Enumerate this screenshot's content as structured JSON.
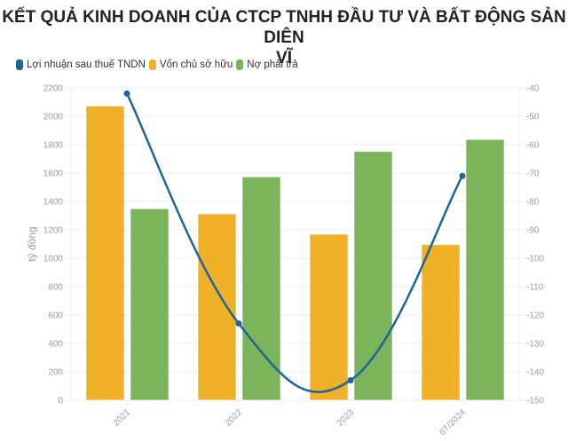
{
  "title": {
    "line1": "KẾT QUẢ KINH DOANH CỦA CTCP TNHH ĐẦU TƯ VÀ BẤT ĐỘNG SẢN DIÊN",
    "line2": "VĨ"
  },
  "legend": [
    {
      "label": "Lợi nhuận sau thuế TNDN",
      "color": "#1f6697"
    },
    {
      "label": "Vốn chủ sở hữu",
      "color": "#f0b128"
    },
    {
      "label": "Nợ phải trả",
      "color": "#7cb45c"
    }
  ],
  "axes": {
    "left_label": "tỷ đồng",
    "left_ticks": [
      "0",
      "200",
      "400",
      "600",
      "800",
      "1000",
      "1200",
      "1400",
      "1600",
      "1800",
      "2000",
      "2200"
    ],
    "right_ticks": [
      "-150",
      "-140",
      "-130",
      "-120",
      "-110",
      "-100",
      "-90",
      "-80",
      "-70",
      "-60",
      "-50",
      "-40"
    ],
    "x_ticks": [
      "2021",
      "2022",
      "2023",
      "6T/2024"
    ]
  },
  "chart_data": {
    "type": "bar",
    "title": "KẾT QUẢ KINH DOANH CỦA CTCP TNHH ĐẦU TƯ VÀ BẤT ĐỘNG SẢN DIÊN VĨ",
    "categories": [
      "2021",
      "2022",
      "2023",
      "6T/2024"
    ],
    "series": [
      {
        "name": "Lợi nhuận sau thuế TNDN",
        "type": "line",
        "axis": "right",
        "color": "#1f6697",
        "values": [
          -42,
          -123,
          -143,
          -71
        ]
      },
      {
        "name": "Vốn chủ sở hữu",
        "type": "bar",
        "axis": "left",
        "color": "#f0b128",
        "values": [
          2072,
          1312,
          1169,
          1096
        ]
      },
      {
        "name": "Nợ phải trả",
        "type": "bar",
        "axis": "left",
        "color": "#7cb45c",
        "values": [
          1348,
          1573,
          1752,
          1836
        ]
      }
    ],
    "xlabel": "",
    "ylabel": "tỷ đồng",
    "ylim": [
      0,
      2200
    ],
    "y2lim": [
      -150,
      -40
    ],
    "grid": true,
    "legend_position": "top-left"
  }
}
